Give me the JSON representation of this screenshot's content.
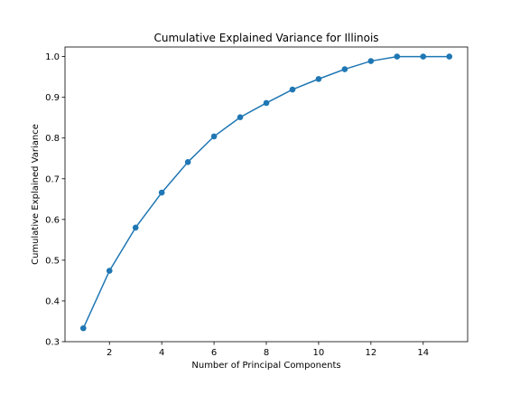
{
  "chart_data": {
    "type": "line",
    "title": "Cumulative Explained Variance for Illinois",
    "xlabel": "Number of Principal Components",
    "ylabel": "Cumulative Explained Variance",
    "x": [
      1,
      2,
      3,
      4,
      5,
      6,
      7,
      8,
      9,
      10,
      11,
      12,
      13,
      14,
      15
    ],
    "series": [
      {
        "values": [
          0.333,
          0.474,
          0.58,
          0.666,
          0.741,
          0.804,
          0.851,
          0.886,
          0.919,
          0.945,
          0.969,
          0.989,
          1.0,
          1.0,
          1.0
        ],
        "color": "#1f77b4",
        "marker": "circle"
      }
    ],
    "xlim": [
      0.3,
      15.7
    ],
    "ylim": [
      0.3,
      1.0235
    ],
    "xticks": [
      2,
      4,
      6,
      8,
      10,
      12,
      14
    ],
    "yticks": [
      0.3,
      0.4,
      0.5,
      0.6,
      0.7,
      0.8,
      0.9,
      1.0
    ],
    "xtick_labels": [
      "2",
      "4",
      "6",
      "8",
      "10",
      "12",
      "14"
    ],
    "ytick_labels": [
      "0.3",
      "0.4",
      "0.5",
      "0.6",
      "0.7",
      "0.8",
      "0.9",
      "1.0"
    ],
    "grid": false,
    "legend": "none"
  }
}
